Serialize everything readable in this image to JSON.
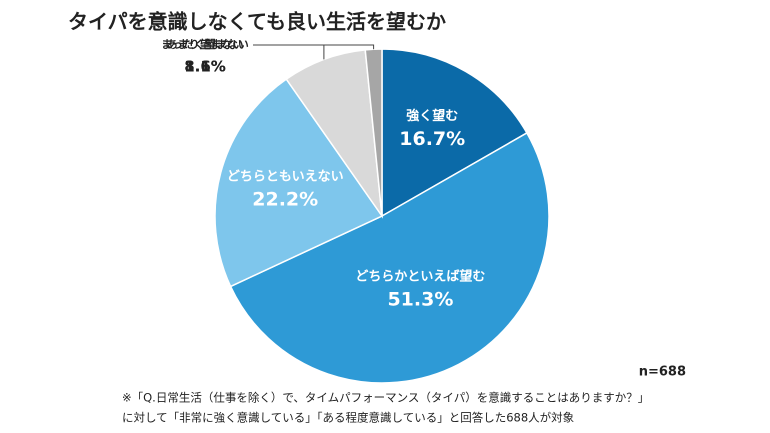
{
  "chart_data": {
    "type": "pie",
    "title": "タイパを意識しなくても良い生活を望むか",
    "categories": [
      "強く望む",
      "どちらかといえば望む",
      "どちらともいえない",
      "あまり望まない",
      "まったく望まない"
    ],
    "values": [
      16.7,
      51.3,
      22.2,
      8.1,
      1.6
    ],
    "value_labels": [
      "16.7%",
      "51.3%",
      "22.2%",
      "8.1%",
      "1.6%"
    ],
    "colors": [
      "#0b6aa8",
      "#2e9ad6",
      "#7ec6ec",
      "#d9d9d9",
      "#a6a6a6"
    ],
    "sample_size": "n=688",
    "footnote": [
      "※「Q.日常生活（仕事を除く）で、タイムパフォーマンス（タイパ）を意識することはありますか？」",
      "に対して「非常に強く意識している」「ある程度意識している」と回答した688人が対象"
    ]
  }
}
